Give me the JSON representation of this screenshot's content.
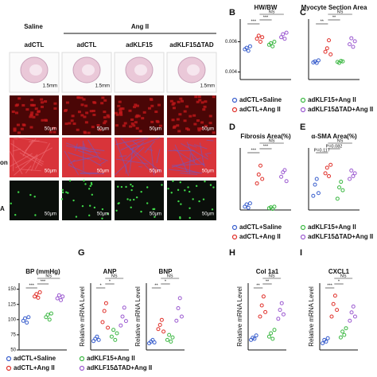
{
  "figure": {
    "micrographs": {
      "groups": [
        "Saline",
        "Ang II"
      ],
      "columns": [
        "adCTL",
        "adCTL",
        "adKLF15",
        "adKLF15ΔTAD"
      ],
      "row_labels": [
        "on",
        "A"
      ],
      "scale_bars": [
        "1.5mm",
        "50μm"
      ]
    },
    "legend": [
      "adCTL+Saline",
      "adKLF15+Ang II",
      "adCTL+Ang II",
      "adKLF15ΔTAD+Ang II"
    ],
    "group_colors": [
      "#3a5fcd",
      "#e0302a",
      "#3cb843",
      "#9b59d0"
    ],
    "y_label": "Relative mRNA Level",
    "panels": [
      {
        "letter": "B",
        "title": "HW/BW",
        "ylim": [
          0.0035,
          0.0075
        ],
        "yticks": [
          0.004,
          0.006
        ],
        "sig": [
          "***",
          "***",
          "NS"
        ],
        "groups": [
          [
            0.0055,
            0.0056,
            0.0054,
            0.0057
          ],
          [
            0.0062,
            0.0064,
            0.006,
            0.0063
          ],
          [
            0.0058,
            0.0059,
            0.0057,
            0.006
          ],
          [
            0.0063,
            0.0065,
            0.0062,
            0.0066
          ]
        ]
      },
      {
        "letter": "C",
        "title": "Myocyte Section Area",
        "ylim": [
          0,
          12
        ],
        "sig": [
          "**",
          "**",
          "NS"
        ],
        "groups": [
          [
            3.4,
            3.6,
            3.3,
            3.8
          ],
          [
            5.5,
            6.2,
            7.8,
            5.0
          ],
          [
            3.5,
            3.3,
            3.7,
            3.6
          ],
          [
            7.0,
            8.2,
            6.5,
            7.6
          ]
        ]
      },
      {
        "letter": "D",
        "title": "Fibrosis Area(%)",
        "ylim": [
          0,
          28
        ],
        "sig": [
          "***",
          "***",
          "NS"
        ],
        "groups": [
          [
            1.5,
            2.5,
            1.0,
            3.0
          ],
          [
            12,
            16,
            20,
            14
          ],
          [
            0.8,
            1.2,
            0.5,
            1.5
          ],
          [
            15,
            17,
            18,
            13
          ]
        ]
      },
      {
        "letter": "E",
        "title": "α-SMA Area(%)",
        "ylim": [
          0,
          11
        ],
        "sig": [
          "P=0.117",
          "P=0.082",
          "NS"
        ],
        "groups": [
          [
            2.5,
            4.5,
            5.5,
            3.0
          ],
          [
            6.5,
            7.5,
            6.0,
            8.0
          ],
          [
            2.0,
            4.0,
            5.0,
            3.5
          ],
          [
            5.5,
            7.0,
            6.0,
            6.5
          ]
        ]
      },
      {
        "title": "BP (mmHg)",
        "ylim": [
          50,
          160
        ],
        "yticks": [
          50,
          75,
          100,
          125,
          150
        ],
        "sig": [
          "***",
          "***",
          "NS"
        ],
        "groups": [
          [
            98,
            102,
            95,
            104
          ],
          [
            138,
            142,
            136,
            145
          ],
          [
            104,
            108,
            100,
            110
          ],
          [
            135,
            140,
            132,
            138
          ]
        ]
      },
      {
        "letter": "G",
        "title": "ANP",
        "ylim": [
          0,
          6
        ],
        "sig": [
          "*",
          "*",
          "NS"
        ],
        "mrna": true,
        "groups": [
          [
            0.8,
            1.0,
            1.2,
            0.9
          ],
          [
            2.5,
            3.5,
            4.2,
            2.0
          ],
          [
            1.2,
            1.8,
            0.9,
            1.5
          ],
          [
            2.2,
            3.0,
            3.8,
            2.6
          ]
        ]
      },
      {
        "title": "BNP",
        "ylim": [
          0,
          8
        ],
        "sig": [
          "**",
          "*",
          "NS"
        ],
        "mrna": true,
        "groups": [
          [
            0.8,
            1.0,
            1.2,
            0.9
          ],
          [
            2.5,
            3.0,
            3.6,
            2.2
          ],
          [
            1.2,
            1.8,
            1.0,
            1.5
          ],
          [
            3.5,
            5.0,
            6.2,
            4.0
          ]
        ]
      },
      {
        "letter": "H",
        "title": "Col 1a1",
        "ylim": [
          0,
          6
        ],
        "sig": [
          "**",
          "**",
          "NS"
        ],
        "mrna": true,
        "groups": [
          [
            0.9,
            1.1,
            1.0,
            1.3
          ],
          [
            3.0,
            4.0,
            4.8,
            3.4
          ],
          [
            1.2,
            1.5,
            1.0,
            1.8
          ],
          [
            2.8,
            3.6,
            4.2,
            3.2
          ]
        ]
      },
      {
        "letter": "I",
        "title": "CXCL1",
        "ylim": [
          0,
          8
        ],
        "sig": [
          "***",
          "*",
          "NS"
        ],
        "mrna": true,
        "groups": [
          [
            0.8,
            1.2,
            1.0,
            1.4
          ],
          [
            4.0,
            5.5,
            6.5,
            4.8
          ],
          [
            1.5,
            2.2,
            1.8,
            2.6
          ],
          [
            3.5,
            4.5,
            5.2,
            4.0
          ]
        ]
      }
    ]
  }
}
